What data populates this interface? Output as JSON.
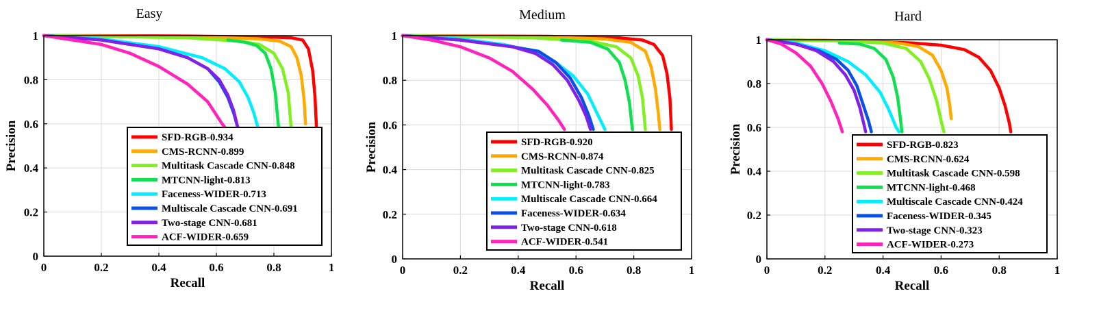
{
  "chart_data": [
    {
      "type": "line",
      "title": "Easy",
      "xlabel": "Recall",
      "ylabel": "Precision",
      "xlim": [
        0,
        1
      ],
      "ylim": [
        0,
        1
      ],
      "xticks": [
        "0",
        "0.2",
        "0.4",
        "0.6",
        "0.8",
        "1"
      ],
      "yticks": [
        "0",
        "0.2",
        "0.4",
        "0.6",
        "0.8",
        "1"
      ],
      "grid": true,
      "legend_position": "bottom-right",
      "series": [
        {
          "name": "SFD-RGB-0.934",
          "color": "#ff0000",
          "points": [
            [
              0,
              1
            ],
            [
              0.5,
              0.998
            ],
            [
              0.8,
              0.993
            ],
            [
              0.86,
              0.99
            ],
            [
              0.9,
              0.98
            ],
            [
              0.92,
              0.94
            ],
            [
              0.935,
              0.84
            ],
            [
              0.943,
              0.72
            ],
            [
              0.948,
              0.58
            ]
          ]
        },
        {
          "name": "CMS-RCNN-0.899",
          "color": "#ffaa00",
          "points": [
            [
              0,
              1
            ],
            [
              0.5,
              0.995
            ],
            [
              0.75,
              0.985
            ],
            [
              0.82,
              0.975
            ],
            [
              0.86,
              0.95
            ],
            [
              0.88,
              0.9
            ],
            [
              0.895,
              0.82
            ],
            [
              0.905,
              0.71
            ],
            [
              0.91,
              0.6
            ]
          ]
        },
        {
          "name": "Multitask Cascade CNN-0.848",
          "color": "#80f020",
          "points": [
            [
              0,
              1
            ],
            [
              0.5,
              0.99
            ],
            [
              0.68,
              0.975
            ],
            [
              0.75,
              0.96
            ],
            [
              0.8,
              0.92
            ],
            [
              0.83,
              0.85
            ],
            [
              0.85,
              0.74
            ],
            [
              0.86,
              0.58
            ]
          ]
        },
        {
          "name": "MTCNN-light-0.813",
          "color": "#10e050",
          "points": [
            [
              0.64,
              0.98
            ],
            [
              0.7,
              0.97
            ],
            [
              0.74,
              0.955
            ],
            [
              0.77,
              0.92
            ],
            [
              0.79,
              0.85
            ],
            [
              0.805,
              0.74
            ],
            [
              0.815,
              0.6
            ],
            [
              0.82,
              0.55
            ]
          ]
        },
        {
          "name": "Faceness-WIDER-0.713",
          "color": "#00eeff",
          "points": [
            [
              0,
              1
            ],
            [
              0.2,
              0.985
            ],
            [
              0.4,
              0.95
            ],
            [
              0.55,
              0.9
            ],
            [
              0.63,
              0.85
            ],
            [
              0.68,
              0.79
            ],
            [
              0.71,
              0.72
            ],
            [
              0.73,
              0.65
            ],
            [
              0.745,
              0.58
            ]
          ]
        },
        {
          "name": "Multiscale Cascade CNN-0.691",
          "color": "#0a50e6",
          "points": [
            [
              0,
              1
            ],
            [
              0.2,
              0.98
            ],
            [
              0.4,
              0.94
            ],
            [
              0.5,
              0.9
            ],
            [
              0.57,
              0.85
            ],
            [
              0.61,
              0.79
            ],
            [
              0.64,
              0.72
            ],
            [
              0.66,
              0.65
            ],
            [
              0.675,
              0.58
            ]
          ]
        },
        {
          "name": "Two-stage CNN-0.681",
          "color": "#8020e8",
          "points": [
            [
              0,
              1
            ],
            [
              0.2,
              0.98
            ],
            [
              0.4,
              0.94
            ],
            [
              0.5,
              0.9
            ],
            [
              0.57,
              0.85
            ],
            [
              0.61,
              0.8
            ],
            [
              0.64,
              0.73
            ],
            [
              0.66,
              0.66
            ],
            [
              0.675,
              0.58
            ]
          ]
        },
        {
          "name": "ACF-WIDER-0.659",
          "color": "#ff22bb",
          "points": [
            [
              0,
              1
            ],
            [
              0.1,
              0.98
            ],
            [
              0.2,
              0.96
            ],
            [
              0.3,
              0.92
            ],
            [
              0.4,
              0.86
            ],
            [
              0.5,
              0.78
            ],
            [
              0.57,
              0.7
            ],
            [
              0.62,
              0.6
            ],
            [
              0.65,
              0.55
            ]
          ]
        }
      ]
    },
    {
      "type": "line",
      "title": "Medium",
      "xlabel": "Recall",
      "ylabel": "Precision",
      "xlim": [
        0,
        1
      ],
      "ylim": [
        0,
        1
      ],
      "xticks": [
        "0",
        "0.2",
        "0.4",
        "0.6",
        "0.8",
        "1"
      ],
      "yticks": [
        "0",
        "0.2",
        "0.4",
        "0.6",
        "0.8",
        "1"
      ],
      "grid": true,
      "legend_position": "bottom-right",
      "series": [
        {
          "name": "SFD-RGB-0.920",
          "color": "#ff0000",
          "points": [
            [
              0,
              1
            ],
            [
              0.5,
              0.997
            ],
            [
              0.75,
              0.99
            ],
            [
              0.83,
              0.98
            ],
            [
              0.87,
              0.96
            ],
            [
              0.9,
              0.91
            ],
            [
              0.915,
              0.83
            ],
            [
              0.925,
              0.72
            ],
            [
              0.93,
              0.58
            ]
          ]
        },
        {
          "name": "CMS-RCNN-0.874",
          "color": "#ffaa00",
          "points": [
            [
              0,
              1
            ],
            [
              0.45,
              0.995
            ],
            [
              0.7,
              0.985
            ],
            [
              0.79,
              0.97
            ],
            [
              0.84,
              0.93
            ],
            [
              0.86,
              0.86
            ],
            [
              0.875,
              0.76
            ],
            [
              0.885,
              0.65
            ],
            [
              0.89,
              0.58
            ]
          ]
        },
        {
          "name": "Multitask Cascade CNN-0.825",
          "color": "#80f020",
          "points": [
            [
              0,
              1
            ],
            [
              0.45,
              0.99
            ],
            [
              0.65,
              0.975
            ],
            [
              0.74,
              0.95
            ],
            [
              0.79,
              0.9
            ],
            [
              0.815,
              0.82
            ],
            [
              0.83,
              0.72
            ],
            [
              0.84,
              0.58
            ]
          ]
        },
        {
          "name": "MTCNN-light-0.783",
          "color": "#10e050",
          "points": [
            [
              0.55,
              0.98
            ],
            [
              0.65,
              0.97
            ],
            [
              0.71,
              0.94
            ],
            [
              0.75,
              0.88
            ],
            [
              0.77,
              0.8
            ],
            [
              0.785,
              0.7
            ],
            [
              0.795,
              0.58
            ]
          ]
        },
        {
          "name": "Multiscale Cascade CNN-0.664",
          "color": "#00eeff",
          "points": [
            [
              0,
              1
            ],
            [
              0.2,
              0.985
            ],
            [
              0.35,
              0.96
            ],
            [
              0.45,
              0.93
            ],
            [
              0.53,
              0.88
            ],
            [
              0.59,
              0.82
            ],
            [
              0.64,
              0.74
            ],
            [
              0.67,
              0.66
            ],
            [
              0.7,
              0.58
            ]
          ]
        },
        {
          "name": "Faceness-WIDER-0.634",
          "color": "#0a50e6",
          "points": [
            [
              0,
              1
            ],
            [
              0.2,
              0.98
            ],
            [
              0.38,
              0.95
            ],
            [
              0.47,
              0.93
            ],
            [
              0.53,
              0.88
            ],
            [
              0.58,
              0.81
            ],
            [
              0.62,
              0.72
            ],
            [
              0.645,
              0.64
            ],
            [
              0.66,
              0.58
            ]
          ]
        },
        {
          "name": "Two-stage CNN-0.618",
          "color": "#8020e8",
          "points": [
            [
              0,
              1
            ],
            [
              0.2,
              0.98
            ],
            [
              0.38,
              0.95
            ],
            [
              0.46,
              0.92
            ],
            [
              0.52,
              0.87
            ],
            [
              0.57,
              0.8
            ],
            [
              0.61,
              0.71
            ],
            [
              0.635,
              0.64
            ],
            [
              0.65,
              0.58
            ]
          ]
        },
        {
          "name": "ACF-WIDER-0.541",
          "color": "#ff22bb",
          "points": [
            [
              0,
              1
            ],
            [
              0.1,
              0.98
            ],
            [
              0.2,
              0.95
            ],
            [
              0.3,
              0.9
            ],
            [
              0.38,
              0.84
            ],
            [
              0.45,
              0.76
            ],
            [
              0.5,
              0.69
            ],
            [
              0.54,
              0.62
            ],
            [
              0.56,
              0.58
            ]
          ]
        }
      ]
    },
    {
      "type": "line",
      "title": "Hard",
      "xlabel": "Recall",
      "ylabel": "Precision",
      "xlim": [
        0,
        1
      ],
      "ylim": [
        0,
        1
      ],
      "xticks": [
        "0",
        "0.2",
        "0.4",
        "0.6",
        "0.8",
        "1"
      ],
      "yticks": [
        "0",
        "0.2",
        "0.4",
        "0.6",
        "0.8",
        "1"
      ],
      "grid": true,
      "legend_position": "bottom-right",
      "series": [
        {
          "name": "SFD-RGB-0.823",
          "color": "#ff0000",
          "points": [
            [
              0,
              1
            ],
            [
              0.3,
              0.995
            ],
            [
              0.5,
              0.985
            ],
            [
              0.6,
              0.975
            ],
            [
              0.68,
              0.955
            ],
            [
              0.73,
              0.92
            ],
            [
              0.77,
              0.86
            ],
            [
              0.8,
              0.78
            ],
            [
              0.82,
              0.7
            ],
            [
              0.835,
              0.62
            ],
            [
              0.84,
              0.58
            ]
          ]
        },
        {
          "name": "CMS-RCNN-0.624",
          "color": "#ffaa00",
          "points": [
            [
              0,
              1
            ],
            [
              0.3,
              0.995
            ],
            [
              0.45,
              0.985
            ],
            [
              0.52,
              0.97
            ],
            [
              0.57,
              0.93
            ],
            [
              0.6,
              0.86
            ],
            [
              0.62,
              0.78
            ],
            [
              0.63,
              0.7
            ],
            [
              0.635,
              0.64
            ]
          ]
        },
        {
          "name": "Multitask Cascade CNN-0.598",
          "color": "#80f020",
          "points": [
            [
              0,
              1
            ],
            [
              0.25,
              0.995
            ],
            [
              0.4,
              0.985
            ],
            [
              0.48,
              0.96
            ],
            [
              0.53,
              0.9
            ],
            [
              0.56,
              0.82
            ],
            [
              0.585,
              0.72
            ],
            [
              0.6,
              0.63
            ],
            [
              0.61,
              0.58
            ]
          ]
        },
        {
          "name": "MTCNN-light-0.468",
          "color": "#10e050",
          "points": [
            [
              0.25,
              0.985
            ],
            [
              0.32,
              0.98
            ],
            [
              0.37,
              0.96
            ],
            [
              0.41,
              0.91
            ],
            [
              0.435,
              0.83
            ],
            [
              0.45,
              0.74
            ],
            [
              0.46,
              0.64
            ],
            [
              0.465,
              0.58
            ]
          ]
        },
        {
          "name": "Multiscale Cascade CNN-0.424",
          "color": "#00eeff",
          "points": [
            [
              0,
              1
            ],
            [
              0.1,
              0.985
            ],
            [
              0.2,
              0.95
            ],
            [
              0.28,
              0.9
            ],
            [
              0.34,
              0.84
            ],
            [
              0.39,
              0.76
            ],
            [
              0.42,
              0.68
            ],
            [
              0.445,
              0.6
            ],
            [
              0.455,
              0.58
            ]
          ]
        },
        {
          "name": "Faceness-WIDER-0.345",
          "color": "#0a50e6",
          "points": [
            [
              0,
              1
            ],
            [
              0.1,
              0.98
            ],
            [
              0.18,
              0.95
            ],
            [
              0.24,
              0.91
            ],
            [
              0.28,
              0.86
            ],
            [
              0.31,
              0.79
            ],
            [
              0.33,
              0.71
            ],
            [
              0.35,
              0.63
            ],
            [
              0.36,
              0.58
            ]
          ]
        },
        {
          "name": "Two-stage CNN-0.323",
          "color": "#8020e8",
          "points": [
            [
              0,
              1
            ],
            [
              0.1,
              0.98
            ],
            [
              0.17,
              0.95
            ],
            [
              0.23,
              0.9
            ],
            [
              0.27,
              0.84
            ],
            [
              0.3,
              0.77
            ],
            [
              0.32,
              0.69
            ],
            [
              0.335,
              0.61
            ],
            [
              0.34,
              0.58
            ]
          ]
        },
        {
          "name": "ACF-WIDER-0.273",
          "color": "#ff22bb",
          "points": [
            [
              0,
              1
            ],
            [
              0.05,
              0.98
            ],
            [
              0.1,
              0.94
            ],
            [
              0.15,
              0.88
            ],
            [
              0.19,
              0.8
            ],
            [
              0.22,
              0.72
            ],
            [
              0.245,
              0.64
            ],
            [
              0.26,
              0.58
            ]
          ]
        }
      ]
    }
  ]
}
